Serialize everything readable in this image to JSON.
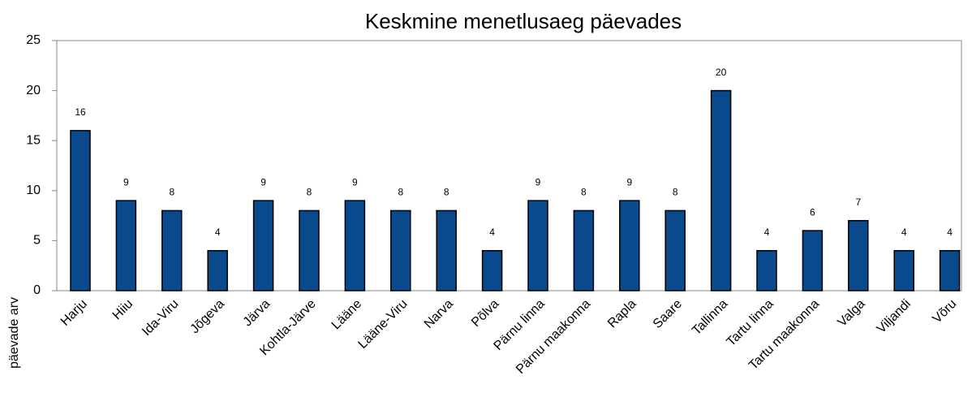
{
  "chart_data": {
    "type": "bar",
    "title": "Keskmine menetlusaeg päevades",
    "y_label": "päevade arv",
    "categories": [
      "Harju",
      "Hiiu",
      "Ida-Viru",
      "Jõgeva",
      "Järva",
      "Kohtla-Järve",
      "Lääne",
      "Lääne-Viru",
      "Narva",
      "Põlva",
      "Pärnu linna",
      "Pärnu maakonna",
      "Rapla",
      "Saare",
      "Tallinna",
      "Tartu linna",
      "Tartu maakonna",
      "Valga",
      "Viljandi",
      "Võru"
    ],
    "values": [
      16,
      9,
      8,
      4,
      9,
      8,
      9,
      8,
      8,
      4,
      9,
      8,
      9,
      8,
      20,
      4,
      6,
      7,
      4,
      4
    ],
    "color": "#0a4a8c",
    "ylim": [
      0,
      25
    ],
    "yticks": [
      0,
      5,
      10,
      15,
      20,
      25
    ],
    "grid": false
  }
}
